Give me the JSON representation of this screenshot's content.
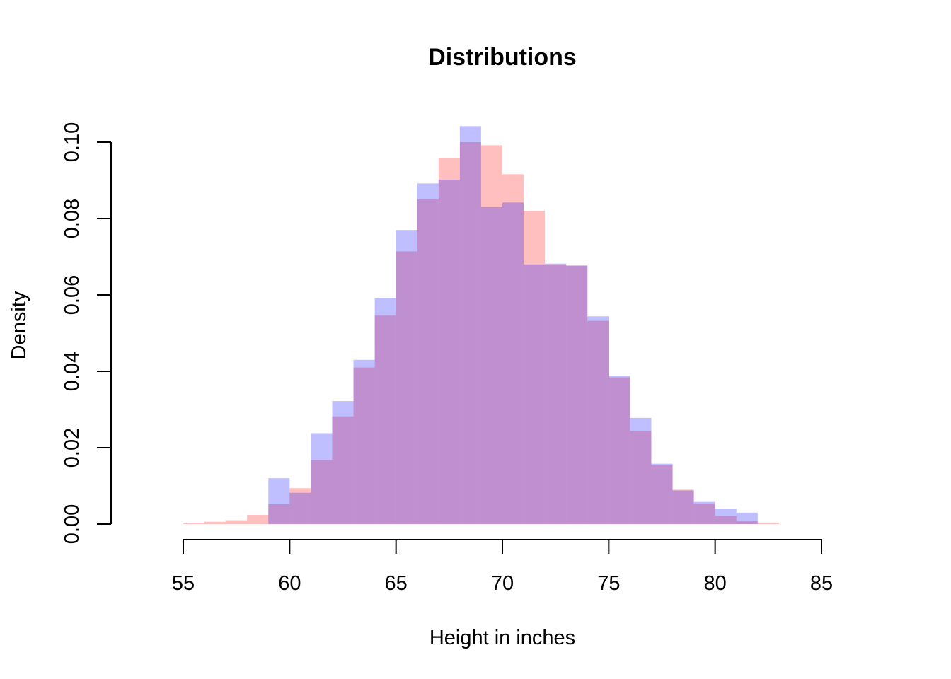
{
  "chart_data": {
    "type": "histogram",
    "title": "Distributions",
    "xlabel": "Height in inches",
    "ylabel": "Density",
    "xlim": [
      55,
      85
    ],
    "ylim": [
      0,
      0.1
    ],
    "x_ticks": [
      "55",
      "60",
      "65",
      "70",
      "75",
      "80",
      "85"
    ],
    "y_ticks": [
      "0.00",
      "0.02",
      "0.04",
      "0.06",
      "0.08",
      "0.10"
    ],
    "grid": false,
    "bins": [
      55,
      56,
      57,
      58,
      59,
      60,
      61,
      62,
      63,
      64,
      65,
      66,
      67,
      68,
      69,
      70,
      71,
      72,
      73,
      74,
      75,
      76,
      77,
      78,
      79,
      80,
      81,
      82,
      83
    ],
    "series": [
      {
        "color": "#FF0000",
        "opacity": 0.25,
        "values": [
          0.0002,
          0.0006,
          0.001,
          0.0024,
          0.0052,
          0.0094,
          0.0168,
          0.0282,
          0.041,
          0.0546,
          0.0714,
          0.085,
          0.0958,
          0.1,
          0.0992,
          0.0916,
          0.082,
          0.068,
          0.0678,
          0.0532,
          0.0384,
          0.0244,
          0.0154,
          0.009,
          0.0054,
          0.0022,
          0.0008,
          0.0004
        ]
      },
      {
        "color": "#0000FF",
        "opacity": 0.25,
        "values": [
          0,
          0,
          0,
          0,
          0.012,
          0.0082,
          0.0238,
          0.0322,
          0.043,
          0.0592,
          0.077,
          0.0892,
          0.0902,
          0.1042,
          0.083,
          0.0842,
          0.068,
          0.0682,
          0.0676,
          0.0544,
          0.0388,
          0.0278,
          0.0158,
          0.0088,
          0.0058,
          0.004,
          0.003,
          0
        ]
      }
    ]
  }
}
